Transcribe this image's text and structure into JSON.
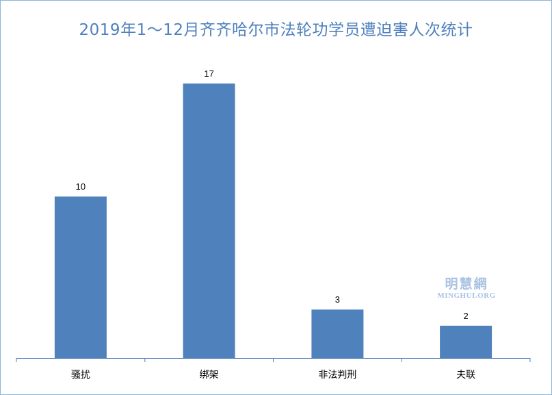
{
  "chart_data": {
    "type": "bar",
    "title": "2019年1～12月齐齐哈尔市法轮功学员遭迫害人次统计",
    "categories": [
      "骚扰",
      "绑架",
      "非法判刑",
      "夫联"
    ],
    "values": [
      10,
      17,
      3,
      2
    ],
    "ylim": [
      0,
      17
    ],
    "grid": false,
    "data_labels": true,
    "bar_color": "#4f81bd",
    "title_color": "#4f81bd"
  },
  "watermark": {
    "cn": "明慧網",
    "en": "MINGHUI.ORG"
  }
}
